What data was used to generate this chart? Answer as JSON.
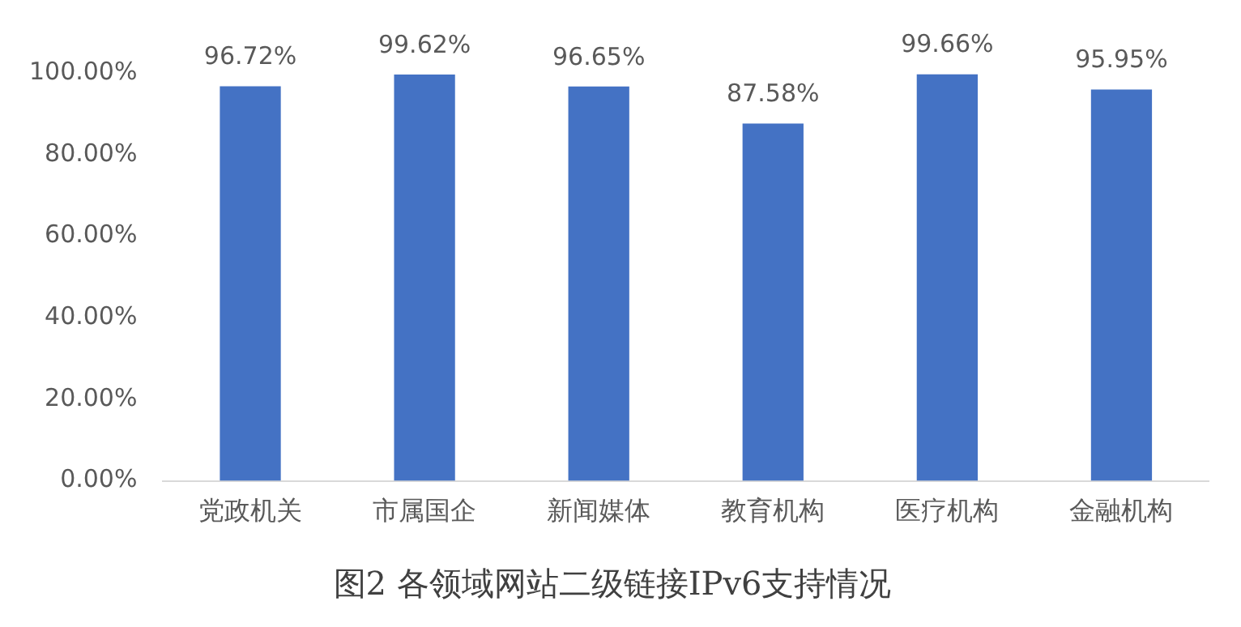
{
  "chart_data": {
    "type": "bar",
    "title": "图2 各领域网站二级链接IPv6支持情况",
    "categories": [
      "党政机关",
      "市属国企",
      "新闻媒体",
      "教育机构",
      "医疗机构",
      "金融机构"
    ],
    "values": [
      96.72,
      99.62,
      96.65,
      87.58,
      99.66,
      95.95
    ],
    "value_labels": [
      "96.72%",
      "99.62%",
      "96.65%",
      "87.58%",
      "99.66%",
      "95.95%"
    ],
    "color": "#4472c4",
    "ylim": [
      0,
      100
    ],
    "yticks": [
      {
        "value": 0,
        "label": "0.00%"
      },
      {
        "value": 20,
        "label": "20.00%"
      },
      {
        "value": 40,
        "label": "40.00%"
      },
      {
        "value": 60,
        "label": "60.00%"
      },
      {
        "value": 80,
        "label": "80.00%"
      },
      {
        "value": 100,
        "label": "100.00%"
      }
    ],
    "grid": false
  }
}
